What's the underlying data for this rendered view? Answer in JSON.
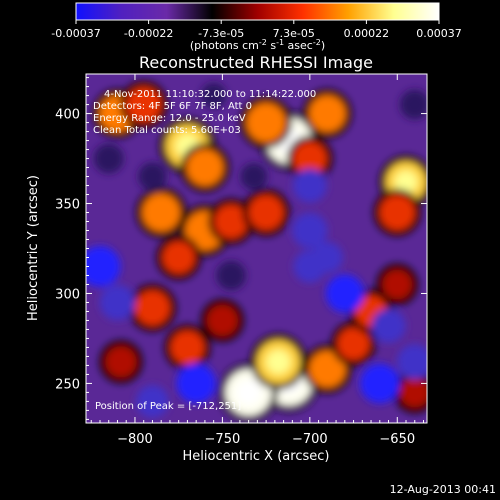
{
  "colorbar": {
    "tick_labels": [
      "-0.00037",
      "-0.00022",
      "-7.3e-05",
      "7.3e-05",
      "0.00022",
      "0.00037"
    ],
    "unit_label": "(photons cm",
    "unit_exp1": "-2",
    "unit_mid": " s",
    "unit_exp2": "-1",
    "unit_mid2": " asec",
    "unit_exp3": "-2",
    "unit_end": ")",
    "colors": [
      "#1010ff",
      "#5020c0",
      "#6a2aa8",
      "#000000",
      "#a00000",
      "#ff3000",
      "#ffa000",
      "#ffff90",
      "#ffffff"
    ]
  },
  "chart_data": {
    "type": "heatmap",
    "title": "Reconstructed RHESSI Image",
    "xlabel": "Heliocentric X (arcsec)",
    "ylabel": "Heliocentric Y (arcsec)",
    "xlim": [
      -828,
      -633
    ],
    "ylim": [
      228,
      422
    ],
    "x_ticks": [
      -800,
      -750,
      -700,
      -650
    ],
    "x_tick_labels": [
      "−800",
      "−750",
      "−700",
      "−650"
    ],
    "y_ticks": [
      250,
      300,
      350,
      400
    ],
    "y_tick_labels": [
      "250",
      "300",
      "350",
      "400"
    ],
    "annotations": {
      "time_range": "4-Nov-2011 11:10:32.000 to 11:14:22.000",
      "detectors": "Detectors: 4F 5F 6F 7F 8F, Att 0",
      "energy": "Energy Range: 12.0 - 25.0 keV",
      "clean": "Clean     Total counts: 5.60E+03",
      "peak": "Position of Peak = [-712,251]"
    },
    "blobs": [
      {
        "x": -712,
        "y": 251,
        "v": 1.0
      },
      {
        "x": -735,
        "y": 245,
        "v": 0.95
      },
      {
        "x": -718,
        "y": 262,
        "v": 0.85
      },
      {
        "x": -712,
        "y": 385,
        "v": 0.95
      },
      {
        "x": -725,
        "y": 395,
        "v": 0.7
      },
      {
        "x": -770,
        "y": 382,
        "v": 0.85
      },
      {
        "x": -760,
        "y": 370,
        "v": 0.6
      },
      {
        "x": -810,
        "y": 400,
        "v": 0.6
      },
      {
        "x": -795,
        "y": 405,
        "v": 0.55
      },
      {
        "x": -690,
        "y": 400,
        "v": 0.6
      },
      {
        "x": -700,
        "y": 375,
        "v": 0.5
      },
      {
        "x": -645,
        "y": 362,
        "v": 0.75
      },
      {
        "x": -650,
        "y": 345,
        "v": 0.55
      },
      {
        "x": -785,
        "y": 345,
        "v": 0.65
      },
      {
        "x": -760,
        "y": 335,
        "v": 0.7
      },
      {
        "x": -745,
        "y": 340,
        "v": 0.5
      },
      {
        "x": -725,
        "y": 345,
        "v": 0.55
      },
      {
        "x": -775,
        "y": 320,
        "v": 0.45
      },
      {
        "x": -790,
        "y": 292,
        "v": 0.55
      },
      {
        "x": -770,
        "y": 270,
        "v": 0.5
      },
      {
        "x": -750,
        "y": 285,
        "v": 0.4
      },
      {
        "x": -808,
        "y": 262,
        "v": 0.4
      },
      {
        "x": -690,
        "y": 258,
        "v": 0.6
      },
      {
        "x": -675,
        "y": 272,
        "v": 0.45
      },
      {
        "x": -665,
        "y": 290,
        "v": 0.45
      },
      {
        "x": -650,
        "y": 305,
        "v": 0.35
      },
      {
        "x": -640,
        "y": 245,
        "v": 0.35
      },
      {
        "x": -700,
        "y": 360,
        "v": -0.5
      },
      {
        "x": -700,
        "y": 335,
        "v": -0.55
      },
      {
        "x": -700,
        "y": 315,
        "v": -0.45
      },
      {
        "x": -690,
        "y": 320,
        "v": -0.4
      },
      {
        "x": -680,
        "y": 300,
        "v": -0.65
      },
      {
        "x": -655,
        "y": 282,
        "v": -0.5
      },
      {
        "x": -790,
        "y": 365,
        "v": -0.3
      },
      {
        "x": -820,
        "y": 315,
        "v": -0.75
      },
      {
        "x": -810,
        "y": 295,
        "v": -0.55
      },
      {
        "x": -815,
        "y": 375,
        "v": -0.35
      },
      {
        "x": -765,
        "y": 250,
        "v": -0.7
      },
      {
        "x": -790,
        "y": 240,
        "v": -0.45
      },
      {
        "x": -745,
        "y": 310,
        "v": -0.35
      },
      {
        "x": -732,
        "y": 365,
        "v": -0.25
      },
      {
        "x": -660,
        "y": 250,
        "v": -0.7
      },
      {
        "x": -640,
        "y": 262,
        "v": -0.55
      },
      {
        "x": -640,
        "y": 405,
        "v": -0.35
      },
      {
        "x": -755,
        "y": 410,
        "v": -0.2
      }
    ]
  },
  "footer": {
    "date": "12-Aug-2013 00:41"
  }
}
